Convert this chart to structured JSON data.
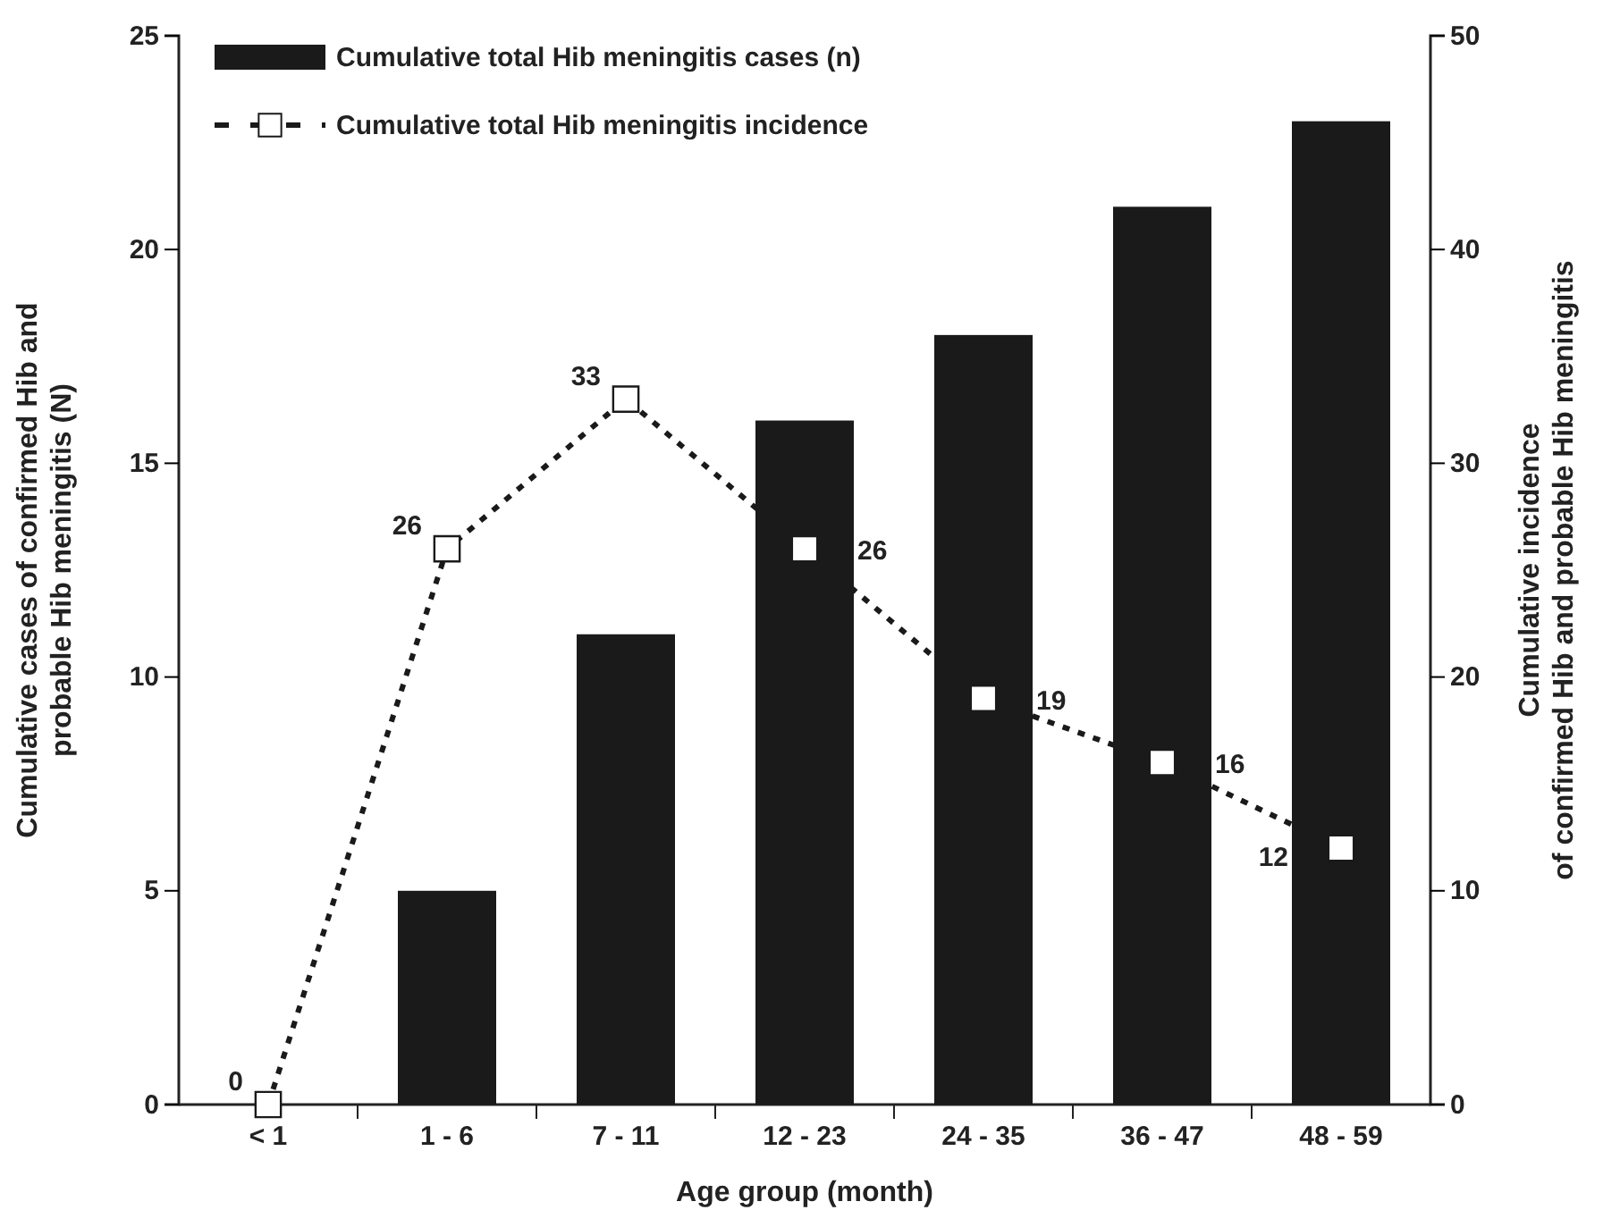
{
  "chart_data": {
    "type": "bar",
    "xlabel": "Age group (month)",
    "ylabel": "Cumulative cases of confirmed Hib and\nprobable Hib meningitis (N)",
    "y2label": "Cumulative incidence\nof confirmed Hib and probable Hib meningitis",
    "categories": [
      "< 1",
      "1 - 6",
      "7 - 11",
      "12 - 23",
      "24 - 35",
      "36 - 47",
      "48 - 59"
    ],
    "series": [
      {
        "name": "Cumulative total Hib meningitis cases (n)",
        "color": "#1a1a1a",
        "values": [
          0,
          5,
          11,
          16,
          18,
          21,
          23
        ]
      },
      {
        "name": "Cumulative total Hib meningitis incidence",
        "type": "line",
        "axis": "y2",
        "color": "#1a1a1a",
        "marker": "square",
        "line_style": "dotted",
        "data_labels": true,
        "values": [
          0,
          26,
          33,
          26,
          19,
          16,
          12
        ]
      }
    ],
    "ylim": [
      0,
      25
    ],
    "yticks": [
      0,
      5,
      10,
      15,
      20,
      25
    ],
    "y2lim": [
      0,
      50
    ],
    "y2ticks": [
      0,
      10,
      20,
      30,
      40,
      50
    ],
    "grid": false,
    "legend": "top left"
  }
}
